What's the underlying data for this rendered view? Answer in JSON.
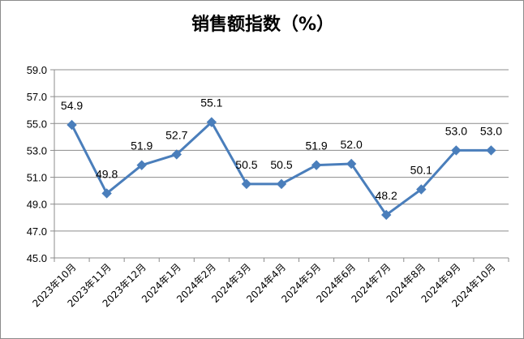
{
  "chart_data": {
    "type": "line",
    "title": "销售额指数（%）",
    "xlabel": "",
    "ylabel": "",
    "categories": [
      "2023年10月",
      "2023年11月",
      "2023年12月",
      "2024年1月",
      "2024年2月",
      "2024年3月",
      "2024年4月",
      "2024年5月",
      "2024年6月",
      "2024年7月",
      "2024年8月",
      "2024年9月",
      "2024年10月"
    ],
    "values": [
      54.9,
      49.8,
      51.9,
      52.7,
      55.1,
      50.5,
      50.5,
      51.9,
      52.0,
      48.2,
      50.1,
      53.0,
      53.0
    ],
    "value_labels": [
      "54.9",
      "49.8",
      "51.9",
      "52.7",
      "55.1",
      "50.5",
      "50.5",
      "51.9",
      "52.0",
      "48.2",
      "50.1",
      "53.0",
      "53.0"
    ],
    "ylim": [
      45.0,
      59.0
    ],
    "yticks": [
      "45.0",
      "47.0",
      "49.0",
      "51.0",
      "53.0",
      "55.0",
      "57.0",
      "59.0"
    ],
    "grid": true,
    "legend": "none",
    "colors": {
      "line": "#4a7ebb",
      "grid": "#8c8c8c",
      "axis": "#8c8c8c"
    }
  }
}
